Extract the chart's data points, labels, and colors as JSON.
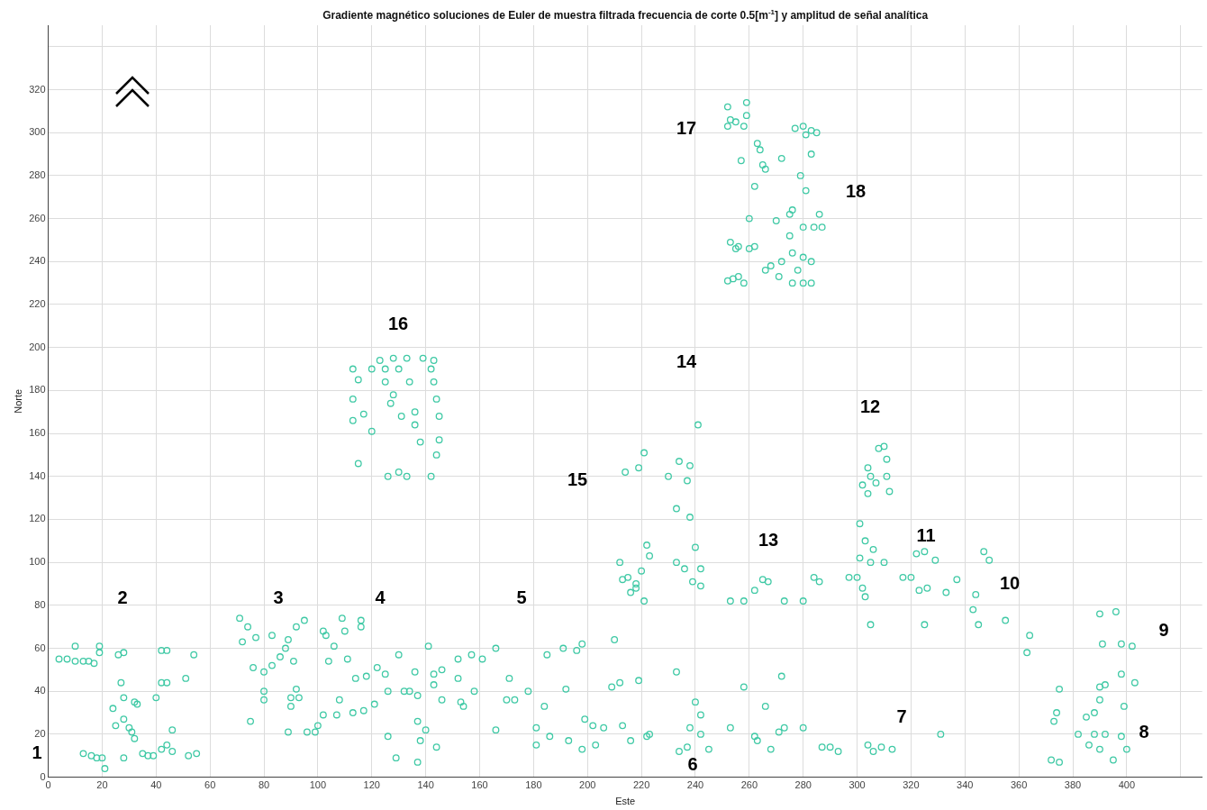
{
  "chart_data": {
    "type": "scatter",
    "title": "Gradiente magnético soluciones de Euler de muestra filtrada frecuencia de corte 0.5[m$^{-1}$] y amplitud de señal analítica",
    "xlabel": "Este",
    "ylabel": "Norte",
    "xlim": [
      0,
      428
    ],
    "ylim": [
      0,
      350
    ],
    "xticks": [
      0,
      20,
      40,
      60,
      80,
      100,
      120,
      140,
      160,
      180,
      200,
      220,
      240,
      260,
      280,
      300,
      320,
      340,
      360,
      380,
      400,
      {
        "value": 420,
        "label": null
      }
    ],
    "yticks": [
      0,
      20,
      40,
      60,
      80,
      100,
      120,
      140,
      160,
      180,
      200,
      220,
      240,
      260,
      280,
      300,
      320,
      {
        "value": 340,
        "label": null
      }
    ],
    "grid": true,
    "legend": false,
    "marker": "circle",
    "annotations": [
      "1",
      "2",
      "3",
      "4",
      "5",
      "6",
      "7",
      "8",
      "9",
      "10",
      "11",
      "12",
      "13",
      "14",
      "15",
      "16",
      "17",
      "18"
    ],
    "series": [
      {
        "color": "#3fc9a5",
        "x": [
          4,
          7,
          10,
          10,
          13,
          15,
          17,
          19,
          19,
          13,
          16,
          18,
          20,
          21,
          24,
          25,
          26,
          28,
          27,
          28,
          28,
          28,
          30,
          31,
          32,
          33,
          32,
          35,
          37,
          39,
          40,
          42,
          44,
          42,
          44,
          42,
          44,
          46,
          46,
          51,
          52,
          55,
          54,
          71,
          72,
          74,
          75,
          76,
          77,
          80,
          80,
          80,
          83,
          83,
          86,
          88,
          89,
          89,
          90,
          90,
          91,
          92,
          92,
          93,
          95,
          96,
          99,
          100,
          102,
          103,
          102,
          104,
          106,
          107,
          108,
          109,
          110,
          111,
          113,
          114,
          116,
          116,
          117,
          118,
          121,
          122,
          125,
          126,
          126,
          129,
          130,
          132,
          134,
          136,
          137,
          137,
          137,
          138,
          140,
          141,
          143,
          144,
          146,
          146,
          143,
          152,
          152,
          153,
          154,
          157,
          158,
          161,
          166,
          166,
          170,
          171,
          173,
          178,
          181,
          181,
          184,
          185,
          186,
          191,
          192,
          193,
          196,
          198,
          199,
          198,
          202,
          203,
          206,
          209,
          210,
          212,
          213,
          216,
          219,
          222,
          223,
          233,
          234,
          237,
          238,
          240,
          242,
          242,
          245,
          253,
          258,
          262,
          263,
          266,
          268,
          271,
          272,
          273,
          280,
          212,
          215,
          220,
          223,
          222,
          213,
          218,
          221,
          218,
          216,
          233,
          236,
          239,
          242,
          240,
          242,
          253,
          258,
          262,
          265,
          267,
          273,
          280,
          284,
          286,
          297,
          301,
          305,
          310,
          303,
          302,
          305,
          317,
          320,
          323,
          326,
          325,
          322,
          325,
          329,
          333,
          337,
          344,
          343,
          345,
          347,
          349,
          355,
          364,
          363,
          390,
          396,
          391,
          398,
          402,
          398,
          403,
          390,
          399,
          375,
          374,
          373,
          372,
          375,
          382,
          388,
          392,
          385,
          388,
          390,
          392,
          390,
          386,
          395,
          398,
          400,
          331,
          304,
          306,
          313,
          309,
          287,
          290,
          293,
          113,
          115,
          113,
          113,
          117,
          115,
          120,
          123,
          128,
          133,
          125,
          130,
          125,
          134,
          128,
          127,
          131,
          139,
          142,
          143,
          143,
          144,
          145,
          145,
          144,
          142,
          138,
          136,
          133,
          126,
          130,
          136,
          120,
          214,
          219,
          221,
          230,
          234,
          233,
          238,
          237,
          238,
          241,
          301,
          302,
          304,
          305,
          307,
          310,
          311,
          311,
          312,
          308,
          304,
          303,
          306,
          300,
          252,
          253,
          252,
          255,
          258,
          259,
          259,
          257,
          253,
          255,
          252,
          256,
          260,
          262,
          263,
          264,
          262,
          265,
          266,
          268,
          266,
          270,
          272,
          275,
          276,
          277,
          280,
          281,
          283,
          285,
          283,
          281,
          279,
          275,
          280,
          284,
          286,
          287,
          276,
          280,
          278,
          276,
          280,
          283,
          272,
          271,
          283,
          258,
          254,
          256,
          260
        ],
        "values": [
          55,
          55,
          54,
          61,
          54,
          54,
          53,
          58,
          61,
          11,
          10,
          9,
          9,
          4,
          32,
          24,
          57,
          58,
          44,
          37,
          27,
          9,
          23,
          21,
          35,
          34,
          18,
          11,
          10,
          10,
          37,
          44,
          44,
          59,
          59,
          13,
          15,
          22,
          12,
          46,
          10,
          11,
          57,
          74,
          63,
          70,
          26,
          51,
          65,
          49,
          36,
          40,
          52,
          66,
          56,
          60,
          64,
          21,
          33,
          37,
          54,
          70,
          41,
          37,
          73,
          21,
          21,
          24,
          68,
          66,
          29,
          54,
          61,
          29,
          36,
          74,
          68,
          55,
          30,
          46,
          73,
          70,
          31,
          47,
          34,
          51,
          48,
          19,
          40,
          9,
          57,
          40,
          40,
          49,
          38,
          7,
          26,
          17,
          22,
          61,
          43,
          14,
          50,
          36,
          48,
          55,
          46,
          35,
          33,
          57,
          40,
          55,
          60,
          22,
          36,
          46,
          36,
          40,
          23,
          15,
          33,
          57,
          19,
          60,
          41,
          17,
          59,
          62,
          27,
          13,
          24,
          15,
          23,
          42,
          64,
          44,
          24,
          17,
          45,
          19,
          20,
          49,
          12,
          14,
          23,
          35,
          29,
          20,
          13,
          23,
          42,
          19,
          17,
          33,
          13,
          21,
          47,
          23,
          23,
          100,
          93,
          96,
          103,
          108,
          92,
          90,
          82,
          88,
          86,
          100,
          97,
          91,
          97,
          107,
          89,
          82,
          82,
          87,
          92,
          91,
          82,
          82,
          93,
          91,
          93,
          102,
          100,
          100,
          84,
          88,
          71,
          93,
          93,
          87,
          88,
          71,
          104,
          105,
          101,
          86,
          92,
          85,
          78,
          71,
          105,
          101,
          73,
          66,
          58,
          76,
          77,
          62,
          62,
          61,
          48,
          44,
          42,
          33,
          41,
          30,
          26,
          8,
          7,
          20,
          20,
          20,
          28,
          30,
          36,
          43,
          13,
          15,
          8,
          19,
          13,
          20,
          15,
          12,
          13,
          14,
          14,
          14,
          12,
          190,
          185,
          176,
          166,
          169,
          146,
          161,
          194,
          195,
          195,
          190,
          190,
          184,
          184,
          178,
          174,
          168,
          195,
          190,
          194,
          184,
          176,
          168,
          157,
          150,
          140,
          156,
          164,
          140,
          140,
          142,
          170,
          190,
          142,
          144,
          151,
          140,
          147,
          125,
          145,
          138,
          121,
          164,
          118,
          136,
          132,
          140,
          137,
          154,
          148,
          140,
          133,
          153,
          144,
          110,
          106,
          93,
          312,
          306,
          303,
          305,
          303,
          314,
          308,
          287,
          249,
          246,
          231,
          247,
          260,
          247,
          295,
          292,
          275,
          285,
          283,
          238,
          236,
          259,
          288,
          262,
          264,
          302,
          303,
          299,
          301,
          300,
          290,
          273,
          280,
          252,
          256,
          256,
          262,
          256,
          244,
          242,
          236,
          230,
          230,
          240,
          240,
          233,
          230,
          230,
          232,
          233,
          246
        ]
      }
    ]
  }
}
